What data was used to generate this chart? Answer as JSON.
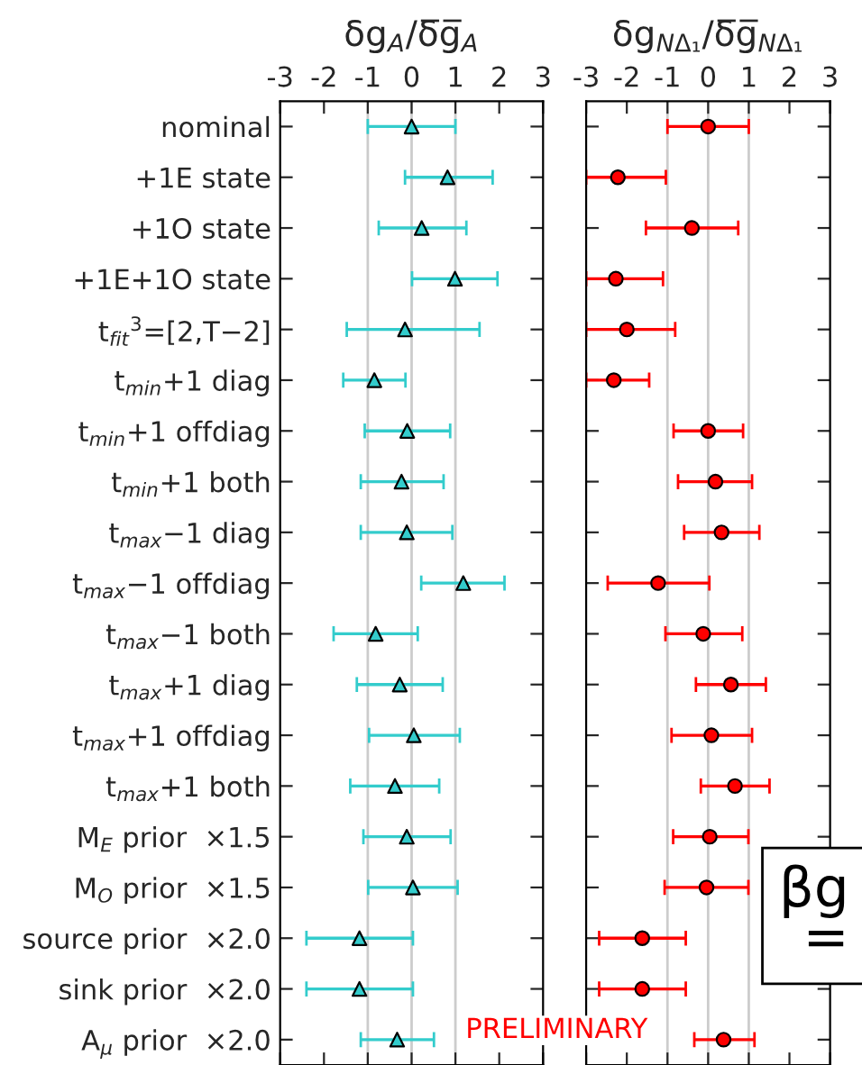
{
  "chart_data": [
    {
      "type": "scatter",
      "orientation": "horizontal",
      "title": "δg$_{A}$/δ̅g̅$_{A}$",
      "categories": [
        "nominal",
        "+1E state",
        "+1O state",
        "+1E+1O state",
        "t$_{fit}$$^{3}$=[2,T−2]",
        "t$_{min}$+1 diag",
        "t$_{min}$+1 offdiag",
        "t$_{min}$+1 both",
        "t$_{max}$−1 diag",
        "t$_{max}$−1 offdiag",
        "t$_{max}$−1 both",
        "t$_{max}$+1 diag",
        "t$_{max}$+1 offdiag",
        "t$_{max}$+1 both",
        "M$_{E}$ prior  ×1.5",
        "M$_{O}$ prior  ×1.5",
        "source prior  ×2.0",
        "sink prior  ×2.0",
        "A$_{μ}$ prior  ×2.0"
      ],
      "series": [
        {
          "color": "#33cccc",
          "values": [
            0.0,
            0.82,
            0.23,
            0.99,
            -0.15,
            -0.85,
            -0.1,
            -0.23,
            -0.11,
            1.18,
            -0.82,
            -0.27,
            0.05,
            -0.38,
            -0.11,
            0.03,
            -1.19,
            -1.19,
            -0.33
          ],
          "errors": [
            [
              -1.0,
              1.0
            ],
            [
              -0.15,
              1.85
            ],
            [
              -0.75,
              1.25
            ],
            [
              0.01,
              1.96
            ],
            [
              -1.48,
              1.55
            ],
            [
              -1.56,
              -0.14
            ],
            [
              -1.07,
              0.88
            ],
            [
              -1.16,
              0.73
            ],
            [
              -1.16,
              0.93
            ],
            [
              0.22,
              2.12
            ],
            [
              -1.78,
              0.14
            ],
            [
              -1.25,
              0.71
            ],
            [
              -0.97,
              1.1
            ],
            [
              -1.4,
              0.63
            ],
            [
              -1.1,
              0.89
            ],
            [
              -0.99,
              1.05
            ],
            [
              -2.4,
              0.03
            ],
            [
              -2.4,
              0.03
            ],
            [
              -1.16,
              0.51
            ]
          ]
        }
      ],
      "marker": "triangle",
      "xlim": [
        -3,
        3
      ],
      "xticks": [
        -3,
        -2,
        -1,
        0,
        1,
        2,
        3
      ],
      "ref_lines": [
        {
          "axis": "x",
          "value": -1,
          "color": "#cccccc"
        },
        {
          "axis": "x",
          "value": 0,
          "color": "#cccccc"
        },
        {
          "axis": "x",
          "value": 1,
          "color": "#cccccc"
        }
      ],
      "annotations": [
        "PRELIMINARY"
      ]
    },
    {
      "type": "scatter",
      "orientation": "horizontal",
      "title": "δg$_{NΔ₁}$/δ̅g̅$_{NΔ₁}$",
      "categories": [
        null,
        null,
        null,
        null,
        null,
        null,
        null,
        null,
        null,
        null,
        null,
        null,
        null,
        null,
        null,
        null,
        null,
        null,
        null
      ],
      "series": [
        {
          "color": "#ff0000",
          "values": [
            0.0,
            -2.22,
            -0.4,
            -2.27,
            -2.0,
            -2.32,
            0.0,
            0.18,
            0.33,
            -1.23,
            -0.12,
            0.56,
            0.08,
            0.66,
            0.04,
            -0.04,
            -1.62,
            -1.62,
            0.38
          ],
          "errors": [
            [
              -1.0,
              1.0
            ],
            [
              -3.0,
              -1.04
            ],
            [
              -1.53,
              0.74
            ],
            [
              -3.0,
              -1.11
            ],
            [
              -3.0,
              -0.81
            ],
            [
              -3.0,
              -1.45
            ],
            [
              -0.85,
              0.86
            ],
            [
              -0.74,
              1.08
            ],
            [
              -0.59,
              1.26
            ],
            [
              -2.47,
              0.03
            ],
            [
              -1.05,
              0.84
            ],
            [
              -0.3,
              1.42
            ],
            [
              -0.9,
              1.08
            ],
            [
              -0.18,
              1.51
            ],
            [
              -0.86,
              0.99
            ],
            [
              -1.07,
              0.99
            ],
            [
              -2.68,
              -0.55
            ],
            [
              -2.68,
              -0.55
            ],
            [
              -0.34,
              1.14
            ]
          ]
        }
      ],
      "marker": "circle",
      "xlim": [
        -3,
        3
      ],
      "xticks": [
        -3,
        -2,
        -1,
        0,
        1,
        2,
        3
      ],
      "tick_labels": "x",
      "ref_lines": [
        {
          "axis": "x",
          "value": -1,
          "color": "#cccccc"
        },
        {
          "axis": "x",
          "value": 0,
          "color": "#cccccc"
        },
        {
          "axis": "x",
          "value": 1,
          "color": "#cccccc"
        }
      ],
      "annotations": [
        "βg\n="
      ]
    }
  ]
}
